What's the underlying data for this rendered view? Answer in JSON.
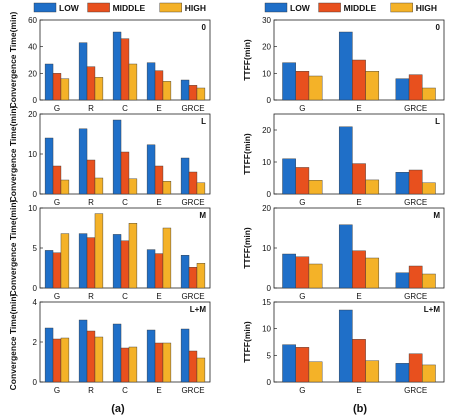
{
  "legend": [
    {
      "label": "LOW",
      "color": "#1f6fc8"
    },
    {
      "label": "MIDDLE",
      "color": "#e8501e"
    },
    {
      "label": "HIGH",
      "color": "#f4b228"
    }
  ],
  "figure_labels": [
    "(a)",
    "(b)"
  ],
  "chart_data": [
    {
      "type": "bar",
      "tag": "0",
      "ylabel": "Convergence Time(min)",
      "ylim": [
        0,
        60
      ],
      "yticks": [
        0,
        20,
        40,
        60
      ],
      "categories": [
        "G",
        "R",
        "C",
        "E",
        "GRCE"
      ],
      "series": [
        {
          "name": "LOW",
          "values": [
            27,
            43,
            51,
            28,
            15
          ]
        },
        {
          "name": "MIDDLE",
          "values": [
            20,
            25,
            46,
            22,
            11
          ]
        },
        {
          "name": "HIGH",
          "values": [
            16,
            17,
            27,
            14,
            9
          ]
        }
      ]
    },
    {
      "type": "bar",
      "tag": "L",
      "ylabel": "Convergence Time(min)",
      "ylim": [
        0,
        20
      ],
      "yticks": [
        0,
        10,
        20
      ],
      "categories": [
        "G",
        "R",
        "C",
        "E",
        "GRCE"
      ],
      "series": [
        {
          "name": "LOW",
          "values": [
            14,
            16.3,
            18.5,
            12.3,
            9
          ]
        },
        {
          "name": "MIDDLE",
          "values": [
            7,
            8.5,
            10.5,
            7,
            5.5
          ]
        },
        {
          "name": "HIGH",
          "values": [
            3.5,
            4,
            3.8,
            3.2,
            2.8
          ]
        }
      ]
    },
    {
      "type": "bar",
      "tag": "M",
      "ylabel": "Convergence Time(min)",
      "ylim": [
        0,
        10
      ],
      "yticks": [
        0,
        5,
        10
      ],
      "categories": [
        "G",
        "R",
        "C",
        "E",
        "GRCE"
      ],
      "series": [
        {
          "name": "LOW",
          "values": [
            4.7,
            6.8,
            6.7,
            4.8,
            4.1
          ]
        },
        {
          "name": "MIDDLE",
          "values": [
            4.4,
            6.3,
            5.9,
            4.3,
            2.6
          ]
        },
        {
          "name": "HIGH",
          "values": [
            6.8,
            9.3,
            8.1,
            7.5,
            3.1
          ]
        }
      ]
    },
    {
      "type": "bar",
      "tag": "L+M",
      "ylabel": "Convergence Time(min)",
      "ylim": [
        0,
        4
      ],
      "yticks": [
        0,
        2,
        4
      ],
      "categories": [
        "G",
        "R",
        "C",
        "E",
        "GRCE"
      ],
      "series": [
        {
          "name": "LOW",
          "values": [
            2.7,
            3.1,
            2.9,
            2.6,
            2.65
          ]
        },
        {
          "name": "MIDDLE",
          "values": [
            2.15,
            2.55,
            1.7,
            1.95,
            1.55
          ]
        },
        {
          "name": "HIGH",
          "values": [
            2.2,
            2.25,
            1.75,
            1.95,
            1.2
          ]
        }
      ]
    },
    {
      "type": "bar",
      "tag": "0",
      "ylabel": "TTFF(min)",
      "ylim": [
        0,
        30
      ],
      "yticks": [
        0,
        10,
        20,
        30
      ],
      "categories": [
        "G",
        "E",
        "GRCE"
      ],
      "series": [
        {
          "name": "LOW",
          "values": [
            14,
            25.5,
            8
          ]
        },
        {
          "name": "MIDDLE",
          "values": [
            10.8,
            15,
            9.5
          ]
        },
        {
          "name": "HIGH",
          "values": [
            9,
            10.8,
            4.5
          ]
        }
      ]
    },
    {
      "type": "bar",
      "tag": "L",
      "ylabel": "TTFF(min)",
      "ylim": [
        0,
        25
      ],
      "yticks": [
        0,
        10,
        20
      ],
      "categories": [
        "G",
        "E",
        "GRCE"
      ],
      "series": [
        {
          "name": "LOW",
          "values": [
            11,
            21,
            6.8
          ]
        },
        {
          "name": "MIDDLE",
          "values": [
            8.3,
            9.5,
            7.5
          ]
        },
        {
          "name": "HIGH",
          "values": [
            4.3,
            4.4,
            3.5
          ]
        }
      ]
    },
    {
      "type": "bar",
      "tag": "M",
      "ylabel": "TTFF(min)",
      "ylim": [
        0,
        20
      ],
      "yticks": [
        0,
        10,
        20
      ],
      "categories": [
        "G",
        "E",
        "GRCE"
      ],
      "series": [
        {
          "name": "LOW",
          "values": [
            8.5,
            15.8,
            3.8
          ]
        },
        {
          "name": "MIDDLE",
          "values": [
            7.8,
            9.3,
            5.5
          ]
        },
        {
          "name": "HIGH",
          "values": [
            6,
            7.5,
            3.5
          ]
        }
      ]
    },
    {
      "type": "bar",
      "tag": "L+M",
      "ylabel": "TTFF(min)",
      "ylim": [
        0,
        15
      ],
      "yticks": [
        0,
        5,
        10,
        15
      ],
      "categories": [
        "G",
        "E",
        "GRCE"
      ],
      "series": [
        {
          "name": "LOW",
          "values": [
            7,
            13.5,
            3.5
          ]
        },
        {
          "name": "MIDDLE",
          "values": [
            6.5,
            8,
            5.3
          ]
        },
        {
          "name": "HIGH",
          "values": [
            3.8,
            4,
            3.2
          ]
        }
      ]
    }
  ]
}
